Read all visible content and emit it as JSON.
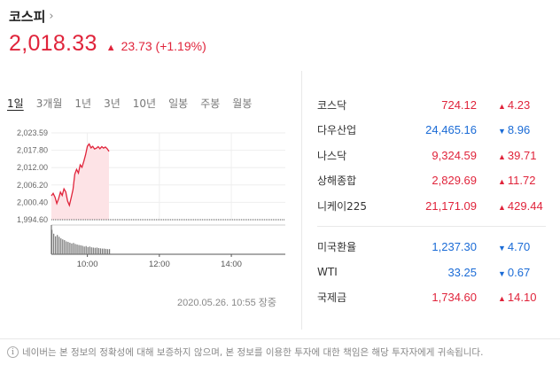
{
  "header": {
    "index_name": "코스피",
    "chevron": "›",
    "price": "2,018.33",
    "change_arrow": "▲",
    "change": "23.73 (+1.19%)"
  },
  "tabs": [
    "1일",
    "3개월",
    "1년",
    "3년",
    "10년",
    "일봉",
    "주봉",
    "월봉"
  ],
  "active_tab": 0,
  "chart_data": {
    "type": "area",
    "y_ticks": [
      "2,023.59",
      "2,017.80",
      "2,012.00",
      "2,006.20",
      "2,000.40",
      "1,994.60"
    ],
    "x_ticks": [
      "10:00",
      "12:00",
      "14:00"
    ],
    "ylim": [
      1994.6,
      2023.59
    ],
    "xlim_minutes": [
      540,
      930
    ],
    "reference_line": 1994.6,
    "line_color": "#e0243b",
    "fill_color": "#fde3e6",
    "series": [
      {
        "values_time_price": [
          [
            540,
            2002.6
          ],
          [
            543,
            2003.4
          ],
          [
            546,
            2002.1
          ],
          [
            549,
            2000.0
          ],
          [
            552,
            2001.6
          ],
          [
            555,
            2003.8
          ],
          [
            558,
            2002.7
          ],
          [
            561,
            2004.9
          ],
          [
            564,
            2003.9
          ],
          [
            567,
            2000.8
          ],
          [
            570,
            1999.4
          ],
          [
            573,
            2001.9
          ],
          [
            576,
            2004.7
          ],
          [
            579,
            2009.8
          ],
          [
            582,
            2011.4
          ],
          [
            585,
            2010.2
          ],
          [
            588,
            2012.9
          ],
          [
            591,
            2012.1
          ],
          [
            594,
            2014.1
          ],
          [
            597,
            2016.3
          ],
          [
            600,
            2019.1
          ],
          [
            603,
            2019.9
          ],
          [
            606,
            2018.6
          ],
          [
            609,
            2019.1
          ],
          [
            612,
            2018.2
          ],
          [
            615,
            2018.5
          ],
          [
            618,
            2019.0
          ],
          [
            621,
            2018.3
          ],
          [
            624,
            2019.0
          ],
          [
            627,
            2018.5
          ],
          [
            630,
            2018.9
          ],
          [
            633,
            2018.3
          ],
          [
            636,
            2017.4
          ]
        ]
      }
    ],
    "volume_relative": [
      0.95,
      0.8,
      0.7,
      0.75,
      0.68,
      0.62,
      0.58,
      0.55,
      0.5,
      0.48,
      0.45,
      0.42,
      0.44,
      0.4,
      0.38,
      0.36,
      0.35,
      0.33,
      0.3,
      0.32,
      0.28,
      0.3,
      0.27,
      0.26,
      0.25,
      0.26,
      0.24,
      0.23,
      0.22,
      0.22,
      0.21,
      0.2,
      0.2
    ]
  },
  "timestamp": "2020.05.26. 10:55 장중",
  "quotes_group1": [
    {
      "name": "코스닥",
      "value": "724.12",
      "change": "4.23",
      "dir": "up"
    },
    {
      "name": "다우산업",
      "value": "24,465.16",
      "change": "8.96",
      "dir": "down"
    },
    {
      "name": "나스닥",
      "value": "9,324.59",
      "change": "39.71",
      "dir": "up"
    },
    {
      "name": "상해종합",
      "value": "2,829.69",
      "change": "11.72",
      "dir": "up"
    },
    {
      "name": "니케이225",
      "value": "21,171.09",
      "change": "429.44",
      "dir": "up"
    }
  ],
  "quotes_group2": [
    {
      "name": "미국환율",
      "value": "1,237.30",
      "change": "4.70",
      "dir": "down"
    },
    {
      "name": "WTI",
      "value": "33.25",
      "change": "0.67",
      "dir": "down"
    },
    {
      "name": "국제금",
      "value": "1,734.60",
      "change": "14.10",
      "dir": "up"
    }
  ],
  "arrows": {
    "up": "▲",
    "down": "▼"
  },
  "footer": {
    "info_glyph": "i",
    "text": "네이버는 본 정보의 정확성에 대해 보증하지 않으며, 본 정보를 이용한 투자에 대한 책임은 해당 투자자에게 귀속됩니다."
  }
}
